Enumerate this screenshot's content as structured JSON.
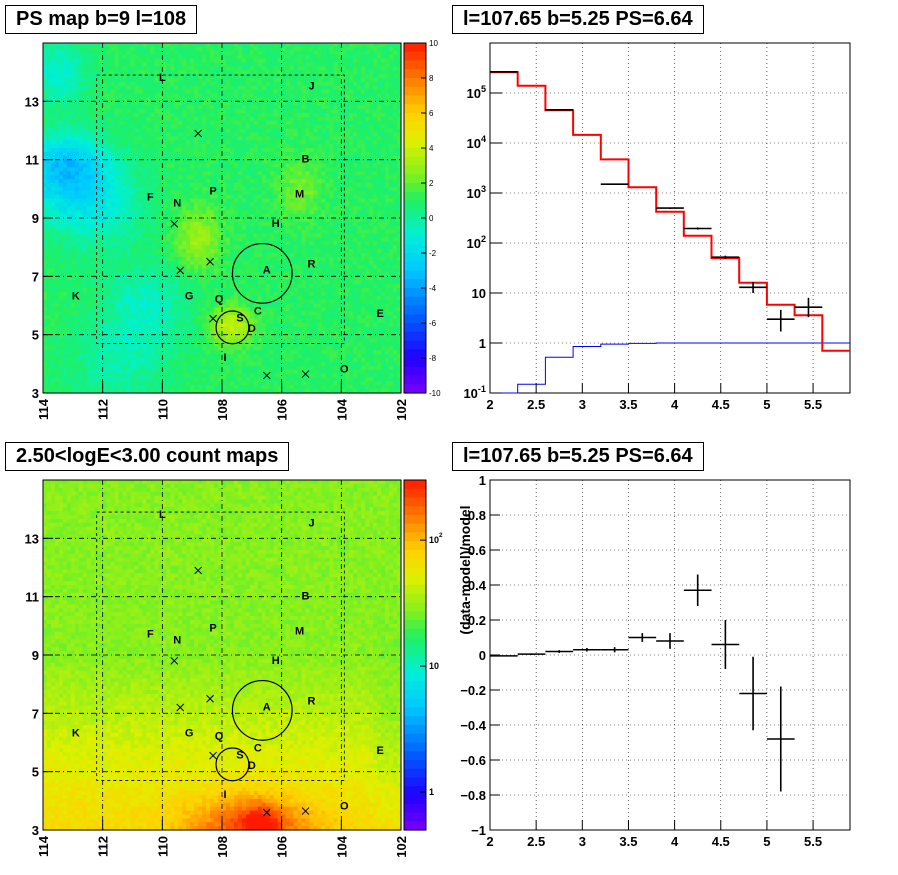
{
  "titles": {
    "ps_map": "PS map b=9 l=108",
    "spectrum": "l=107.65 b=5.25 PS=6.64",
    "count_map": "2.50<logE<3.00 count maps",
    "residual": "l=107.65 b=5.25 PS=6.64"
  },
  "colors": {
    "model": "#ff0000",
    "data": "#000000",
    "background_model": "#0000ff",
    "grid": "#000000"
  },
  "chart_data": [
    {
      "id": "ps_map",
      "type": "heatmap",
      "title": "PS map b=9 l=108",
      "xlim": [
        114,
        102
      ],
      "ylim": [
        3,
        15
      ],
      "x_ticks": [
        "114",
        "112",
        "110",
        "108",
        "106",
        "104",
        "102"
      ],
      "y_ticks": [
        "3",
        "5",
        "7",
        "9",
        "11",
        "13"
      ],
      "colorbar": {
        "min": -10,
        "max": 10,
        "ticks": [
          "10",
          "8",
          "6",
          "4",
          "2",
          "0",
          "-2",
          "-4",
          "-6",
          "-8",
          "-10"
        ]
      },
      "sources": [
        {
          "label": "L",
          "l": 110.0,
          "b": 13.7
        },
        {
          "label": "J",
          "l": 105.0,
          "b": 13.4
        },
        {
          "label": "B",
          "l": 105.2,
          "b": 10.9
        },
        {
          "label": "M",
          "l": 105.4,
          "b": 9.7
        },
        {
          "label": "F",
          "l": 110.4,
          "b": 9.6
        },
        {
          "label": "N",
          "l": 109.5,
          "b": 9.4
        },
        {
          "label": "P",
          "l": 108.3,
          "b": 9.8
        },
        {
          "label": "H",
          "l": 106.2,
          "b": 8.7
        },
        {
          "label": "R",
          "l": 105.0,
          "b": 7.3
        },
        {
          "label": "A",
          "l": 106.5,
          "b": 7.1
        },
        {
          "label": "K",
          "l": 112.9,
          "b": 6.2
        },
        {
          "label": "G",
          "l": 109.1,
          "b": 6.2
        },
        {
          "label": "Q",
          "l": 108.1,
          "b": 6.1
        },
        {
          "label": "C",
          "l": 106.8,
          "b": 5.7
        },
        {
          "label": "S",
          "l": 107.4,
          "b": 5.45
        },
        {
          "label": "D",
          "l": 107.0,
          "b": 5.1
        },
        {
          "label": "E",
          "l": 102.7,
          "b": 5.6
        },
        {
          "label": "I",
          "l": 107.9,
          "b": 4.1
        },
        {
          "label": "O",
          "l": 103.9,
          "b": 3.7
        }
      ],
      "crosses": [
        {
          "l": 108.8,
          "b": 11.9
        },
        {
          "l": 109.6,
          "b": 8.8
        },
        {
          "l": 109.4,
          "b": 7.2
        },
        {
          "l": 108.4,
          "b": 7.5
        },
        {
          "l": 108.3,
          "b": 5.55
        },
        {
          "l": 106.5,
          "b": 3.6
        },
        {
          "l": 105.2,
          "b": 3.65
        }
      ],
      "circles": [
        {
          "l": 106.65,
          "b": 7.1,
          "r": 1.0
        },
        {
          "l": 107.65,
          "b": 5.25,
          "r": 0.55
        }
      ]
    },
    {
      "id": "spectrum",
      "type": "line",
      "title": "l=107.65 b=5.25 PS=6.64",
      "xlim": [
        2.0,
        5.9
      ],
      "ylim": [
        0.1,
        1000000
      ],
      "yscale": "log",
      "x_ticks": [
        "2",
        "2.5",
        "3",
        "3.5",
        "4",
        "4.5",
        "5",
        "5.5"
      ],
      "y_ticks": [
        "10^-1",
        "1",
        "10",
        "10^2",
        "10^3",
        "10^4",
        "10^5"
      ],
      "bin_edges": [
        2.0,
        2.3,
        2.6,
        2.9,
        3.2,
        3.5,
        3.8,
        4.1,
        4.4,
        4.7,
        5.0,
        5.3,
        5.6,
        5.9
      ],
      "series": [
        {
          "values": [
            260000,
            140000,
            45000,
            14500,
            4700,
            1300,
            420,
            140,
            50,
            16,
            5.8,
            3.6,
            0.7
          ]
        },
        {
          "values": [
            0.1,
            0.15,
            0.52,
            0.85,
            0.95,
            0.98,
            1.0,
            1.0,
            1.0,
            1.0,
            1.0,
            1.0,
            1.0
          ]
        }
      ],
      "data_points": [
        {
          "x": 2.15,
          "y": 265000,
          "xerr": 0.15,
          "ylo": 260000,
          "yhi": 270000
        },
        {
          "x": 2.75,
          "y": 46000,
          "xerr": 0.15,
          "ylo": 45000,
          "yhi": 47000
        },
        {
          "x": 3.35,
          "y": 1500,
          "xerr": 0.15,
          "ylo": 1450,
          "yhi": 1550
        },
        {
          "x": 3.95,
          "y": 500,
          "xerr": 0.15,
          "ylo": 480,
          "yhi": 520
        },
        {
          "x": 4.25,
          "y": 195,
          "xerr": 0.15,
          "ylo": 185,
          "yhi": 205
        },
        {
          "x": 4.55,
          "y": 52,
          "xerr": 0.15,
          "ylo": 48,
          "yhi": 56
        },
        {
          "x": 4.85,
          "y": 13,
          "xerr": 0.15,
          "ylo": 10,
          "yhi": 16.5
        },
        {
          "x": 5.15,
          "y": 3.0,
          "xerr": 0.15,
          "ylo": 1.7,
          "yhi": 4.6
        },
        {
          "x": 5.45,
          "y": 5.2,
          "xerr": 0.15,
          "ylo": 3.3,
          "yhi": 8.0
        }
      ]
    },
    {
      "id": "count_map",
      "type": "heatmap",
      "title": "2.50<logE<3.00 count maps",
      "xlim": [
        114,
        102
      ],
      "ylim": [
        3,
        15
      ],
      "x_ticks": [
        "114",
        "112",
        "110",
        "108",
        "106",
        "104",
        "102"
      ],
      "y_ticks": [
        "3",
        "5",
        "7",
        "9",
        "11",
        "13"
      ],
      "colorbar": {
        "scale": "log",
        "min": 0.5,
        "max": 300,
        "ticks": [
          "10^2",
          "10",
          "1"
        ]
      }
    },
    {
      "id": "residual",
      "type": "scatter",
      "title": "l=107.65 b=5.25 PS=6.64",
      "ylabel": "(data-model)/model",
      "xlim": [
        2.0,
        5.9
      ],
      "ylim": [
        -1,
        1
      ],
      "x_ticks": [
        "2",
        "2.5",
        "3",
        "3.5",
        "4",
        "4.5",
        "5",
        "5.5"
      ],
      "y_ticks": [
        "-1",
        "-0.8",
        "-0.6",
        "-0.4",
        "-0.2",
        "0",
        "0.2",
        "0.4",
        "0.6",
        "0.8",
        "1"
      ],
      "data_points": [
        {
          "x": 2.15,
          "y": -0.005,
          "xerr": 0.15,
          "yerr": 0.004
        },
        {
          "x": 2.45,
          "y": 0.005,
          "xerr": 0.15,
          "yerr": 0.005
        },
        {
          "x": 2.75,
          "y": 0.02,
          "xerr": 0.15,
          "yerr": 0.008
        },
        {
          "x": 3.05,
          "y": 0.03,
          "xerr": 0.15,
          "yerr": 0.01
        },
        {
          "x": 3.35,
          "y": 0.03,
          "xerr": 0.15,
          "yerr": 0.015
        },
        {
          "x": 3.65,
          "y": 0.1,
          "xerr": 0.15,
          "yerr": 0.025
        },
        {
          "x": 3.95,
          "y": 0.08,
          "xerr": 0.15,
          "yerr": 0.045
        },
        {
          "x": 4.25,
          "y": 0.37,
          "xerr": 0.15,
          "yerr": 0.09
        },
        {
          "x": 4.55,
          "y": 0.06,
          "xerr": 0.15,
          "yerr": 0.14
        },
        {
          "x": 4.85,
          "y": -0.22,
          "xerr": 0.15,
          "yerr": 0.21
        },
        {
          "x": 5.15,
          "y": -0.48,
          "xerr": 0.15,
          "yerr": 0.3
        }
      ]
    }
  ]
}
